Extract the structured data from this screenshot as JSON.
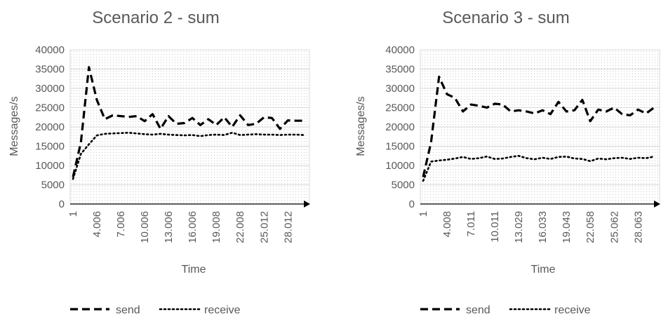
{
  "chart_data": [
    {
      "type": "line",
      "title": "Scenario 2 - sum",
      "xlabel": "Time",
      "ylabel": "Messages/s",
      "ylim": [
        0,
        40000
      ],
      "yticks": [
        0,
        5000,
        10000,
        15000,
        20000,
        25000,
        30000,
        35000,
        40000
      ],
      "grid": true,
      "legend_position": "bottom",
      "x_tick_labels": [
        "1",
        "4.006",
        "7.006",
        "10.006",
        "13.006",
        "16.006",
        "19.008",
        "22.008",
        "25.012",
        "28.012"
      ],
      "series": [
        {
          "name": "send",
          "style": "dashed",
          "values": [
            7000,
            16000,
            35500,
            27000,
            22000,
            23000,
            22800,
            22600,
            22800,
            21500,
            23300,
            19500,
            22800,
            20800,
            21000,
            22300,
            20500,
            22000,
            20500,
            22500,
            20000,
            23000,
            20500,
            20800,
            22500,
            22300,
            19500,
            21700,
            21600,
            21600
          ]
        },
        {
          "name": "receive",
          "style": "dotted",
          "values": [
            6500,
            13000,
            15500,
            17800,
            18200,
            18300,
            18400,
            18500,
            18300,
            18100,
            18000,
            18200,
            18000,
            17900,
            17800,
            17900,
            17600,
            17900,
            18000,
            17900,
            18500,
            17900,
            18000,
            18100,
            18000,
            18000,
            17900,
            18000,
            18000,
            17900
          ]
        }
      ]
    },
    {
      "type": "line",
      "title": "Scenario 3 - sum",
      "xlabel": "Time",
      "ylabel": "Messages/s",
      "ylim": [
        0,
        40000
      ],
      "yticks": [
        0,
        5000,
        10000,
        15000,
        20000,
        25000,
        30000,
        35000,
        40000
      ],
      "grid": true,
      "legend_position": "bottom",
      "x_tick_labels": [
        "1",
        "4.008",
        "7.011",
        "10.011",
        "13.029",
        "16.033",
        "19.043",
        "22.058",
        "25.062",
        "28.063"
      ],
      "series": [
        {
          "name": "send",
          "style": "dashed",
          "values": [
            7000,
            16000,
            33000,
            28500,
            27500,
            24000,
            25800,
            25500,
            25000,
            26000,
            25800,
            24000,
            24300,
            24000,
            23500,
            24300,
            23300,
            26500,
            24000,
            24300,
            27000,
            21500,
            24500,
            24000,
            25000,
            23300,
            23000,
            24500,
            23500,
            25000
          ]
        },
        {
          "name": "receive",
          "style": "dotted",
          "values": [
            6000,
            11000,
            11300,
            11500,
            11800,
            12200,
            11700,
            11900,
            12300,
            11700,
            11800,
            12200,
            12500,
            11900,
            11600,
            12000,
            11700,
            12200,
            12300,
            11800,
            11700,
            11100,
            11800,
            11600,
            11900,
            12000,
            11700,
            12000,
            11900,
            12300
          ]
        }
      ]
    }
  ]
}
